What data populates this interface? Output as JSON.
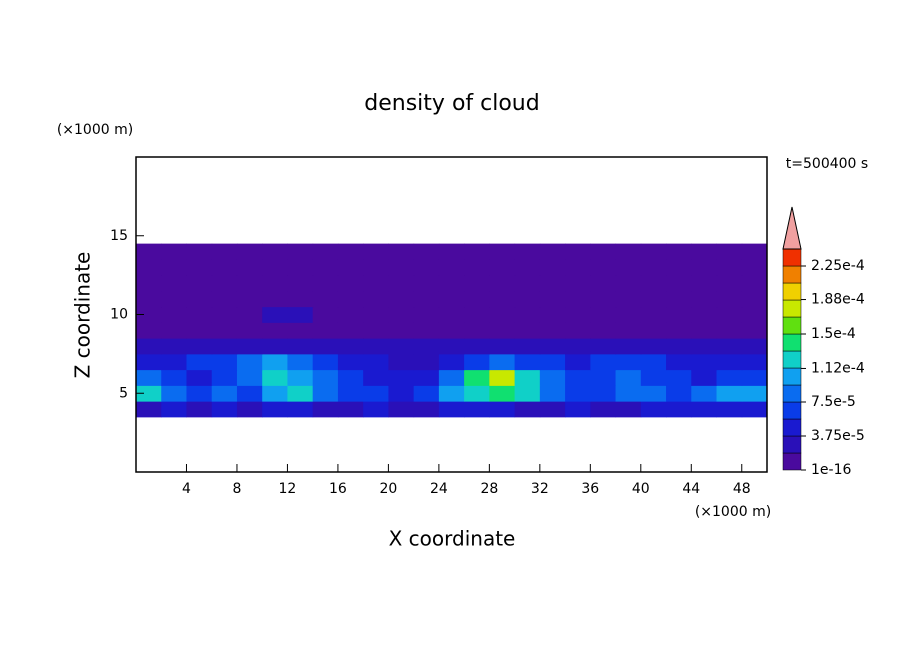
{
  "chart_data": {
    "type": "contour",
    "title": "density of cloud",
    "x_label": "X coordinate",
    "y_label": "Z coordinate",
    "x_unit": "(×1000 m)",
    "y_unit": "(×1000 m)",
    "time_label": "t=500400 s",
    "xlim": [
      0,
      50
    ],
    "ylim": [
      0,
      20
    ],
    "xticks": [
      4,
      8,
      12,
      16,
      20,
      24,
      28,
      32,
      36,
      40,
      44,
      48
    ],
    "yticks": [
      5,
      10,
      15
    ],
    "x": [
      1,
      3,
      5,
      7,
      9,
      11,
      13,
      15,
      17,
      19,
      21,
      23,
      25,
      27,
      29,
      31,
      33,
      35,
      37,
      39,
      41,
      43,
      45,
      47,
      49
    ],
    "y": [
      4,
      5,
      6,
      7,
      8,
      9,
      10,
      11,
      12,
      13,
      14
    ],
    "z": [
      [
        3e-05,
        4e-05,
        3e-05,
        4e-05,
        3e-05,
        4e-05,
        4e-05,
        3e-05,
        3e-05,
        4e-05,
        3e-05,
        3e-05,
        4e-05,
        5e-05,
        4e-05,
        3e-05,
        3e-05,
        4e-05,
        3e-05,
        3e-05,
        4e-05,
        4e-05,
        5e-05,
        5e-05,
        4e-05
      ],
      [
        0.00012,
        9e-05,
        6e-05,
        8e-05,
        7e-05,
        0.00011,
        0.00013,
        9e-05,
        7e-05,
        6e-05,
        5e-05,
        6e-05,
        0.0001,
        0.00013,
        0.00014,
        0.00012,
        8e-05,
        6e-05,
        7e-05,
        9e-05,
        8e-05,
        6e-05,
        9e-05,
        0.0001,
        0.00011
      ],
      [
        8e-05,
        6e-05,
        5e-05,
        7e-05,
        8e-05,
        0.00012,
        0.00011,
        8e-05,
        6e-05,
        4e-05,
        4e-05,
        5e-05,
        9e-05,
        0.00014,
        0.00017,
        0.00013,
        9e-05,
        6e-05,
        7e-05,
        8e-05,
        7e-05,
        6e-05,
        5e-05,
        6e-05,
        7e-05
      ],
      [
        4e-05,
        5e-05,
        6e-05,
        7e-05,
        9e-05,
        0.0001,
        8e-05,
        7e-05,
        5e-05,
        4e-05,
        3e-05,
        3e-05,
        4e-05,
        6e-05,
        8e-05,
        7e-05,
        6e-05,
        5e-05,
        6e-05,
        7e-05,
        6e-05,
        5e-05,
        4e-05,
        4e-05,
        5e-05
      ],
      [
        2.5e-05,
        2.5e-05,
        3e-05,
        2.5e-05,
        3e-05,
        3e-05,
        2.5e-05,
        2.5e-05,
        2e-05,
        2e-05,
        2e-05,
        2.5e-05,
        2.5e-05,
        3e-05,
        3e-05,
        2.5e-05,
        2.5e-05,
        2.5e-05,
        3e-05,
        2.5e-05,
        2.5e-05,
        2.5e-05,
        2.5e-05,
        2.5e-05,
        2.5e-05
      ],
      [
        5e-06,
        5e-06,
        5e-06,
        5e-06,
        5e-06,
        5e-06,
        5e-06,
        5e-06,
        5e-06,
        5e-06,
        5e-06,
        5e-06,
        5e-06,
        5e-06,
        5e-06,
        5e-06,
        5e-06,
        5e-06,
        5e-06,
        5e-06,
        5e-06,
        5e-06,
        5e-06,
        5e-06,
        5e-06
      ],
      [
        5e-06,
        5e-06,
        5e-06,
        5e-06,
        5e-06,
        2e-05,
        2e-05,
        5e-06,
        5e-06,
        5e-06,
        5e-06,
        5e-06,
        5e-06,
        5e-06,
        5e-06,
        5e-06,
        5e-06,
        5e-06,
        5e-06,
        5e-06,
        5e-06,
        5e-06,
        5e-06,
        5e-06,
        5e-06
      ],
      [
        5e-06,
        5e-06,
        5e-06,
        5e-06,
        5e-06,
        5e-06,
        5e-06,
        5e-06,
        5e-06,
        5e-06,
        5e-06,
        5e-06,
        5e-06,
        5e-06,
        5e-06,
        5e-06,
        5e-06,
        5e-06,
        5e-06,
        5e-06,
        5e-06,
        5e-06,
        5e-06,
        5e-06,
        5e-06
      ],
      [
        5e-06,
        5e-06,
        5e-06,
        5e-06,
        5e-06,
        5e-06,
        5e-06,
        5e-06,
        5e-06,
        5e-06,
        5e-06,
        5e-06,
        5e-06,
        5e-06,
        5e-06,
        5e-06,
        5e-06,
        5e-06,
        5e-06,
        5e-06,
        5e-06,
        5e-06,
        5e-06,
        5e-06,
        5e-06
      ],
      [
        5e-06,
        5e-06,
        5e-06,
        5e-06,
        5e-06,
        5e-06,
        5e-06,
        5e-06,
        5e-06,
        5e-06,
        5e-06,
        5e-06,
        5e-06,
        5e-06,
        5e-06,
        5e-06,
        5e-06,
        5e-06,
        5e-06,
        5e-06,
        5e-06,
        5e-06,
        5e-06,
        5e-06,
        5e-06
      ],
      [
        5e-06,
        5e-06,
        5e-06,
        5e-06,
        5e-06,
        5e-06,
        5e-06,
        5e-06,
        5e-06,
        5e-06,
        5e-06,
        5e-06,
        5e-06,
        5e-06,
        5e-06,
        5e-06,
        5e-06,
        5e-06,
        5e-06,
        5e-06,
        5e-06,
        5e-06,
        5e-06,
        5e-06,
        5e-06
      ]
    ],
    "levels": [
      1e-16,
      1.875e-05,
      3.75e-05,
      5.625e-05,
      7.5e-05,
      9.375e-05,
      0.0001125,
      0.00013125,
      0.00015,
      0.00016875,
      0.0001875,
      0.00020625,
      0.000225,
      0.00024375
    ],
    "colors": [
      "#4a0a9e",
      "#2a10b8",
      "#1a1ad0",
      "#0a3ce8",
      "#0a6cf0",
      "#10a0f0",
      "#10d0c8",
      "#10e070",
      "#60e010",
      "#c8e800",
      "#f0d000",
      "#f08000",
      "#f03000"
    ],
    "extend_color": "#f0a0a0",
    "cticks": [
      {
        "value": 1e-16,
        "label": "1e-16"
      },
      {
        "value": 3.75e-05,
        "label": "3.75e-5"
      },
      {
        "value": 7.5e-05,
        "label": "7.5e-5"
      },
      {
        "value": 0.000112,
        "label": "1.12e-4"
      },
      {
        "value": 0.00015,
        "label": "1.5e-4"
      },
      {
        "value": 0.000188,
        "label": "1.88e-4"
      },
      {
        "value": 0.000225,
        "label": "2.25e-4"
      }
    ]
  }
}
